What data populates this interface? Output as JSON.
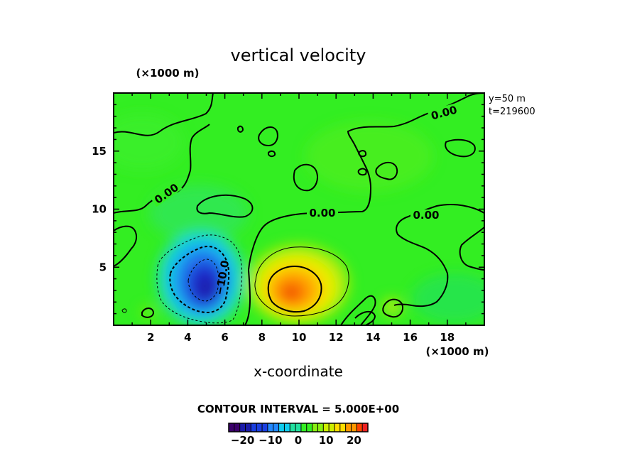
{
  "chart_data": {
    "type": "heatmap",
    "title": "vertical velocity",
    "xlabel": "x-coordinate",
    "x_unit": "(×1000 m)",
    "y_unit": "(×1000 m)",
    "xlim": [
      0,
      20
    ],
    "ylim": [
      0,
      20
    ],
    "x_ticks": [
      "2",
      "4",
      "6",
      "8",
      "10",
      "12",
      "14",
      "16",
      "18"
    ],
    "y_ticks": [
      "5",
      "10",
      "15"
    ],
    "x_tick_values": [
      2,
      4,
      6,
      8,
      10,
      12,
      14,
      16,
      18
    ],
    "y_tick_values": [
      5,
      10,
      15
    ],
    "info_lines": [
      "y=50  m",
      "t=219600"
    ],
    "contour_interval_text": "CONTOUR INTERVAL = 5.000E+00",
    "colorbar": {
      "range": [
        -25,
        25
      ],
      "ticks": [
        "−20",
        "−10",
        "0",
        "10",
        "20"
      ],
      "tick_values": [
        -20,
        -10,
        0,
        10,
        20
      ]
    },
    "contour_labels": [
      "0.00",
      "0.00",
      "0.00",
      "0.00",
      "−10.0"
    ],
    "features": [
      {
        "kind": "downdraft",
        "x": 4.8,
        "y": 3.5,
        "min_value": -22
      },
      {
        "kind": "updraft",
        "x": 9.8,
        "y": 2.8,
        "max_value": 20
      }
    ],
    "colors": {
      "background": "#33ee22",
      "negative_min": "#1a1aa8",
      "positive_max": "#ee4400"
    }
  }
}
